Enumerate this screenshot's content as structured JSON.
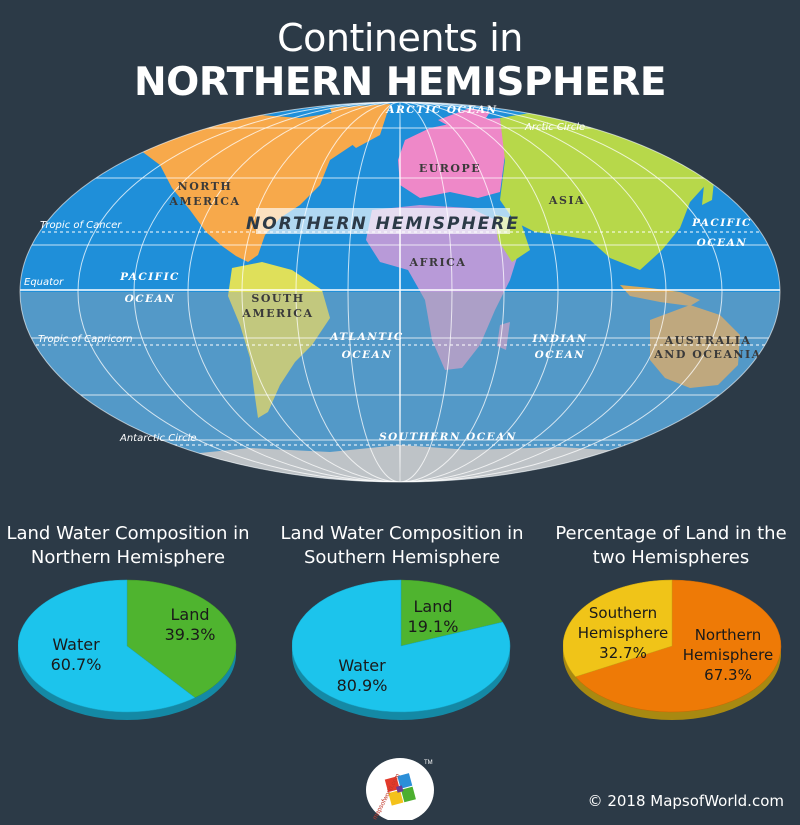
{
  "title": {
    "line1": "Continents in",
    "line2": "NORTHERN HEMISPHERE"
  },
  "map": {
    "banner": "NORTHERN HEMISPHERE",
    "continents": {
      "north_america_1": "NORTH",
      "north_america_2": "AMERICA",
      "europe": "EUROPE",
      "asia": "ASIA",
      "africa": "AFRICA",
      "south_america_1": "SOUTH",
      "south_america_2": "AMERICA",
      "australia_1": "AUSTRALIA",
      "australia_2": "AND OCEANIA"
    },
    "oceans": {
      "arctic": "ARCTIC OCEAN",
      "pacific_w_1": "PACIFIC",
      "pacific_w_2": "OCEAN",
      "pacific_e_1": "PACIFIC",
      "pacific_e_2": "OCEAN",
      "atlantic_1": "ATLANTIC",
      "atlantic_2": "OCEAN",
      "indian_1": "INDIAN",
      "indian_2": "OCEAN",
      "southern": "SOUTHERN OCEAN"
    },
    "lines": {
      "arctic_circle": "Arctic Circle",
      "tropic_cancer": "Tropic of Cancer",
      "equator": "Equator",
      "tropic_capricorn": "Tropic of Capricorn",
      "antarctic_circle": "Antarctic Circle"
    },
    "colors": {
      "ocean": "#1f8fd9",
      "north_america": "#f7a94b",
      "europe": "#ee88c8",
      "asia": "#b7d84a",
      "africa": "#b89ad8",
      "south_america": "#dfe05a",
      "australia": "#d9aa5a",
      "antarctica": "#d8d8d8"
    }
  },
  "pies": [
    {
      "title1": "Land Water Composition in",
      "title2": "Northern Hemisphere",
      "slices": [
        {
          "label": "Land",
          "value": 39.3,
          "display": "39.3%",
          "color": "#4fb42f"
        },
        {
          "label": "Water",
          "value": 60.7,
          "display": "60.7%",
          "color": "#1cc4ec"
        }
      ]
    },
    {
      "title1": "Land Water Composition in",
      "title2": "Southern Hemisphere",
      "slices": [
        {
          "label": "Land",
          "value": 19.1,
          "display": "19.1%",
          "color": "#4fb42f"
        },
        {
          "label": "Water",
          "value": 80.9,
          "display": "80.9%",
          "color": "#1cc4ec"
        }
      ]
    },
    {
      "title1": "Percentage of Land in the",
      "title2": "two Hemispheres",
      "slices": [
        {
          "label1": "Northern",
          "label2": "Hemisphere",
          "value": 67.3,
          "display": "67.3%",
          "color": "#ee7a06"
        },
        {
          "label1": "Southern",
          "label2": "Hemisphere",
          "value": 32.7,
          "display": "32.7%",
          "color": "#f0c418"
        }
      ]
    }
  ],
  "logo": {
    "tm": "TM",
    "text": "mapsofworld.com"
  },
  "copyright": "© 2018 MapsofWorld.com"
}
